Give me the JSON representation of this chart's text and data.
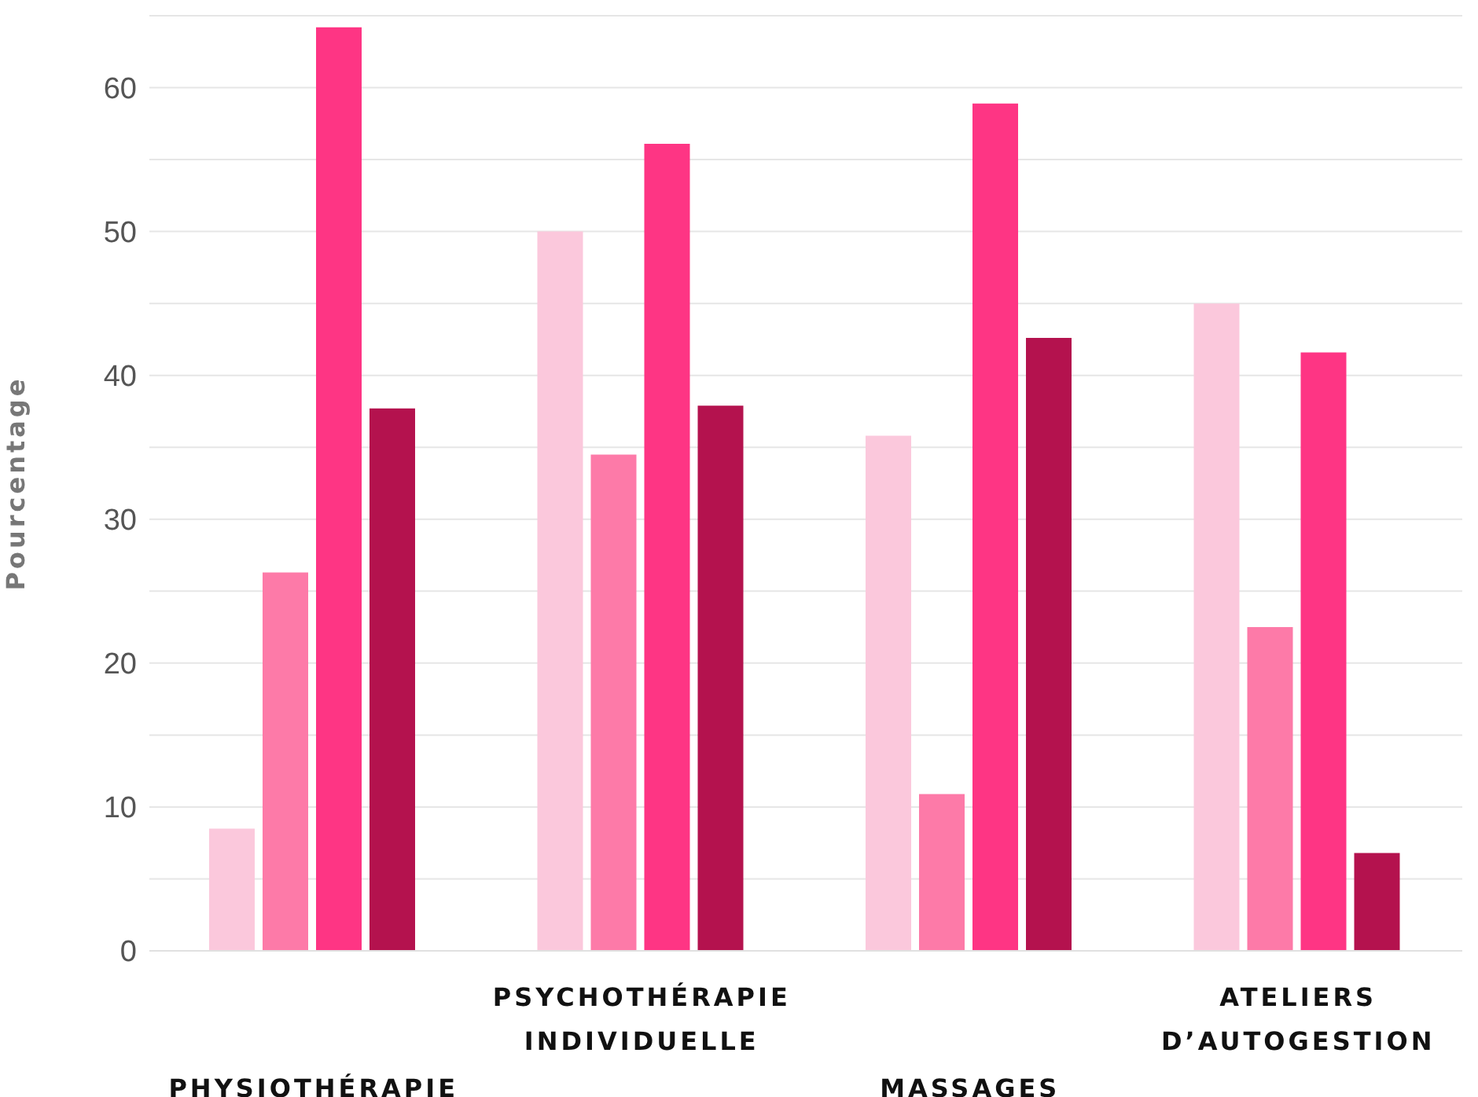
{
  "chart_data": {
    "type": "bar",
    "ylabel": "Pourcentage",
    "categories": [
      "PHYSIOTHÉRAPIE",
      "PSYCHOTHÉRAPIE\nINDIVIDUELLE",
      "MASSAGES",
      "ATELIERS\nD’AUTOGESTION"
    ],
    "series": [
      {
        "color": "#fbc8dc",
        "values": [
          8.5,
          50,
          35.8,
          45
        ]
      },
      {
        "color": "#fd7aa8",
        "values": [
          26.3,
          34.5,
          10.9,
          22.5
        ]
      },
      {
        "color": "#fe3584",
        "values": [
          64.2,
          56.1,
          58.9,
          41.6
        ]
      },
      {
        "color": "#b4124e",
        "values": [
          37.7,
          37.9,
          42.6,
          6.8
        ]
      }
    ],
    "ylim": [
      0,
      65
    ],
    "yticks": [
      0,
      {
        "value": 5,
        "label": null
      },
      10,
      {
        "value": 15,
        "label": null
      },
      20,
      {
        "value": 25,
        "label": null
      },
      30,
      {
        "value": 35,
        "label": null
      },
      40,
      {
        "value": 45,
        "label": null
      },
      50,
      {
        "value": 55,
        "label": null
      },
      60,
      {
        "value": 65,
        "label": null
      }
    ],
    "grid": "y",
    "legend": false
  }
}
